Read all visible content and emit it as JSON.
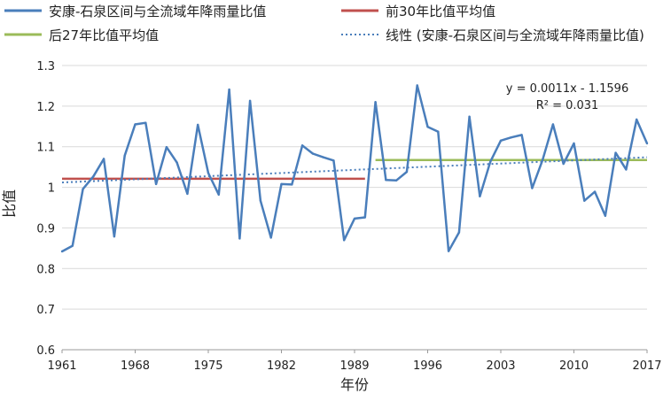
{
  "chart_data": {
    "type": "line",
    "xlabel": "年份",
    "ylabel": "比值",
    "x_ticks": [
      1961,
      1968,
      1975,
      1982,
      1989,
      1996,
      2003,
      2010,
      2017
    ],
    "ylim": [
      0.6,
      1.3
    ],
    "xlim": [
      1961,
      2017
    ],
    "y_ticks": [
      "0.6",
      "0.7",
      "0.8",
      "0.9",
      "1",
      "1.1",
      "1.2",
      "1.3"
    ],
    "legend": [
      {
        "label": "安康-石泉区间与全流域年降雨量比值",
        "color": "#4a7ebb",
        "style": "solid"
      },
      {
        "label": "前30年比值平均值",
        "color": "#c0504d",
        "style": "solid"
      },
      {
        "label": "后27年比值平均值",
        "color": "#9bbb59",
        "style": "solid"
      },
      {
        "label": "线性 (安康-石泉区间与全流域年降雨量比值)",
        "color": "#4a7ebb",
        "style": "dotted"
      }
    ],
    "series": [
      {
        "name": "安康-石泉区间与全流域年降雨量比值",
        "color": "#4a7ebb",
        "x": [
          1961,
          1962,
          1963,
          1964,
          1965,
          1966,
          1967,
          1968,
          1969,
          1970,
          1971,
          1972,
          1973,
          1974,
          1975,
          1976,
          1977,
          1978,
          1979,
          1980,
          1981,
          1982,
          1983,
          1984,
          1985,
          1986,
          1987,
          1988,
          1989,
          1990,
          1991,
          1992,
          1993,
          1994,
          1995,
          1996,
          1997,
          1998,
          1999,
          2000,
          2001,
          2002,
          2003,
          2004,
          2005,
          2006,
          2007,
          2008,
          2009,
          2010,
          2011,
          2012,
          2013,
          2014,
          2015,
          2016,
          2017
        ],
        "values": [
          0.842,
          0.856,
          0.996,
          1.027,
          1.07,
          0.879,
          1.078,
          1.155,
          1.159,
          1.008,
          1.099,
          1.061,
          0.984,
          1.154,
          1.035,
          0.982,
          1.241,
          0.874,
          1.213,
          0.967,
          0.876,
          1.008,
          1.007,
          1.103,
          1.083,
          1.074,
          1.066,
          0.87,
          0.923,
          0.926,
          1.21,
          1.018,
          1.017,
          1.038,
          1.251,
          1.149,
          1.137,
          0.843,
          0.889,
          1.174,
          0.978,
          1.063,
          1.115,
          1.123,
          1.129,
          0.998,
          1.067,
          1.155,
          1.058,
          1.108,
          0.967,
          0.989,
          0.93,
          1.085,
          1.044,
          1.167,
          1.108
        ]
      },
      {
        "name": "前30年比值平均值",
        "color": "#c0504d",
        "x": [
          1961,
          1990
        ],
        "values": [
          1.021,
          1.021
        ]
      },
      {
        "name": "后27年比值平均值",
        "color": "#9bbb59",
        "x": [
          1991,
          2017
        ],
        "values": [
          1.067,
          1.067
        ]
      }
    ],
    "trendline": {
      "name": "线性 (安康-石泉区间与全流域年降雨量比值)",
      "slope": 0.0011,
      "intercept": -1.1596,
      "x": [
        1961,
        2017
      ],
      "values": [
        1.012,
        1.074
      ]
    },
    "annotations": [
      "y = 0.0011x - 1.1596",
      "R² = 0.031"
    ]
  }
}
